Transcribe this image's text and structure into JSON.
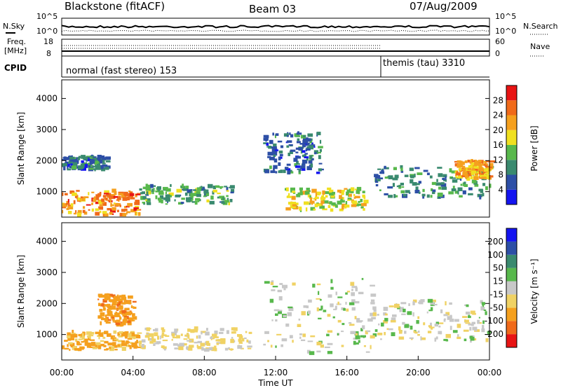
{
  "header": {
    "station": "Blackstone (fitACF)",
    "beam": "Beam 03",
    "date": "07/Aug/2009"
  },
  "chart_data": [
    {
      "type": "line",
      "panel": "noise",
      "left_label": "N.Sky",
      "right_label": "N.Search",
      "left_ticks": [
        "10^5",
        "10^0"
      ],
      "right_ticks": [
        "10^5",
        "10^0"
      ]
    },
    {
      "type": "line",
      "panel": "frequency",
      "left_label_1": "Freq.",
      "left_label_2": "[MHz]",
      "right_label": "Nave",
      "left_ticks": [
        "18",
        "8"
      ],
      "right_ticks": [
        "60",
        "0"
      ]
    },
    {
      "type": "table",
      "panel": "cpid",
      "label": "CPID",
      "segments": [
        {
          "name": "normal (fast stereo) 153",
          "start": "00:00",
          "end": "18:00"
        },
        {
          "name": "themis (tau) 3310",
          "start": "18:00",
          "end": "00:00"
        }
      ]
    },
    {
      "type": "heatmap",
      "panel": "power",
      "ylabel": "Slant Range [km]",
      "yticks": [
        "1000",
        "2000",
        "3000",
        "4000"
      ],
      "ylim": [
        180,
        4600
      ],
      "colorbar_label": "Power [dB]",
      "colorbar_ticks": [
        "4",
        "8",
        "12",
        "16",
        "20",
        "24",
        "28"
      ],
      "colorbar_range": [
        0,
        32
      ],
      "colors": [
        "#1414f0",
        "#2d4fa6",
        "#3a8a6f",
        "#58b84c",
        "#f0e020",
        "#f5a01e",
        "#f06a1a",
        "#e81414"
      ],
      "regions": [
        {
          "t": [
            0.0,
            4.3
          ],
          "r": [
            250,
            1050
          ],
          "level": 24
        },
        {
          "t": [
            0.0,
            2.5
          ],
          "r": [
            1700,
            2150
          ],
          "level": 8
        },
        {
          "t": [
            4.3,
            9.5
          ],
          "r": [
            600,
            1200
          ],
          "level": 12
        },
        {
          "t": [
            11.3,
            14.5
          ],
          "r": [
            1600,
            2900
          ],
          "level": 8
        },
        {
          "t": [
            12.5,
            17.0
          ],
          "r": [
            400,
            1100
          ],
          "level": 18
        },
        {
          "t": [
            17.5,
            24.0
          ],
          "r": [
            800,
            1800
          ],
          "level": 10
        },
        {
          "t": [
            22.0,
            24.0
          ],
          "r": [
            1400,
            2000
          ],
          "level": 22
        }
      ]
    },
    {
      "type": "heatmap",
      "panel": "velocity",
      "ylabel": "Slant Range [km]",
      "yticks": [
        "1000",
        "2000",
        "3000",
        "4000"
      ],
      "ylim": [
        180,
        4600
      ],
      "colorbar_label": "Velocity [m s⁻¹]",
      "colorbar_ticks": [
        "-200",
        "-100",
        "-50",
        "-15",
        "15",
        "50",
        "100",
        "200"
      ],
      "colors": [
        "#e81414",
        "#f06a1a",
        "#f5a01e",
        "#f0d264",
        "#c8c8c8",
        "#58b84c",
        "#3a8a6f",
        "#2d4fa6",
        "#1414f0"
      ],
      "regions": [
        {
          "t": [
            0.0,
            4.3
          ],
          "r": [
            500,
            1100
          ],
          "level": -60
        },
        {
          "t": [
            2.0,
            4.0
          ],
          "r": [
            1300,
            2300
          ],
          "level": -80
        },
        {
          "t": [
            4.3,
            10.5
          ],
          "r": [
            500,
            1200
          ],
          "level": -20
        },
        {
          "t": [
            11.3,
            17.5
          ],
          "r": [
            400,
            2800
          ],
          "level": 0
        },
        {
          "t": [
            17.5,
            24.0
          ],
          "r": [
            800,
            2100
          ],
          "level": 0
        }
      ]
    }
  ],
  "xaxis": {
    "ticks": [
      "00:00",
      "04:00",
      "08:00",
      "12:00",
      "16:00",
      "20:00",
      "00:00"
    ],
    "label": "Time UT"
  }
}
